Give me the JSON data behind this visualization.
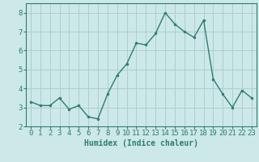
{
  "x": [
    0,
    1,
    2,
    3,
    4,
    5,
    6,
    7,
    8,
    9,
    10,
    11,
    12,
    13,
    14,
    15,
    16,
    17,
    18,
    19,
    20,
    21,
    22,
    23
  ],
  "y": [
    3.3,
    3.1,
    3.1,
    3.5,
    2.9,
    3.1,
    2.5,
    2.4,
    3.7,
    4.7,
    5.3,
    6.4,
    6.3,
    6.9,
    8.0,
    7.4,
    7.0,
    6.7,
    7.6,
    4.5,
    3.7,
    3.0,
    3.9,
    3.5
  ],
  "line_color": "#2e7d6e",
  "marker": "o",
  "marker_size": 2.0,
  "line_width": 1.0,
  "bg_color": "#cce8e8",
  "grid_color": "#b0cece",
  "xlabel": "Humidex (Indice chaleur)",
  "xlabel_fontsize": 7,
  "tick_fontsize": 6.5,
  "ylim": [
    2,
    8.5
  ],
  "xlim": [
    -0.5,
    23.5
  ],
  "yticks": [
    2,
    3,
    4,
    5,
    6,
    7,
    8
  ],
  "xticks": [
    0,
    1,
    2,
    3,
    4,
    5,
    6,
    7,
    8,
    9,
    10,
    11,
    12,
    13,
    14,
    15,
    16,
    17,
    18,
    19,
    20,
    21,
    22,
    23
  ]
}
